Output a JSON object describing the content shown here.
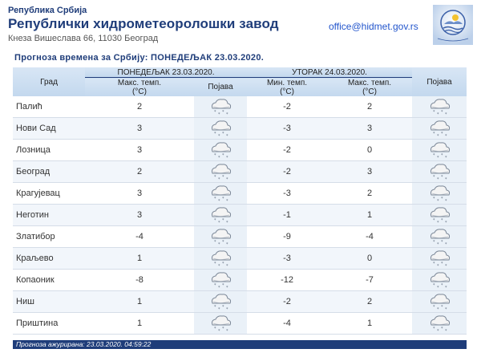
{
  "header": {
    "small_title": "Република Србија",
    "title": "Републички хидрометеоролошки завод",
    "address": "Кнеза Вишеслава 66, 11030 Београд",
    "email": "office@hidmet.gov.rs"
  },
  "subtitle": "Прогноза времена за Србију: ПОНЕДЕЉАК  23.03.2020.",
  "table": {
    "city_header": "Град",
    "day1_caption": "ПОНЕДЕЉАК  23.03.2020.",
    "day2_caption": "УТОРАК  24.03.2020.",
    "day1_max_header": "Макс. темп.\n(°C)",
    "day1_phen_header": "Појава",
    "day2_min_header": "Мин. темп.\n(°C)",
    "day2_max_header": "Макс. темп.\n(°C)",
    "day2_phen_header": "Појава",
    "weather_icon": "cloud-snow-icon",
    "rows": [
      {
        "city": "Палић",
        "d1_max": "2",
        "d2_min": "-2",
        "d2_max": "2"
      },
      {
        "city": "Нови Сад",
        "d1_max": "3",
        "d2_min": "-3",
        "d2_max": "3"
      },
      {
        "city": "Лозница",
        "d1_max": "3",
        "d2_min": "-2",
        "d2_max": "0"
      },
      {
        "city": "Београд",
        "d1_max": "2",
        "d2_min": "-2",
        "d2_max": "3"
      },
      {
        "city": "Крагујевац",
        "d1_max": "3",
        "d2_min": "-3",
        "d2_max": "2"
      },
      {
        "city": "Неготин",
        "d1_max": "3",
        "d2_min": "-1",
        "d2_max": "1"
      },
      {
        "city": "Златибор",
        "d1_max": "-4",
        "d2_min": "-9",
        "d2_max": "-4"
      },
      {
        "city": "Краљево",
        "d1_max": "1",
        "d2_min": "-3",
        "d2_max": "0"
      },
      {
        "city": "Копаоник",
        "d1_max": "-8",
        "d2_min": "-12",
        "d2_max": "-7"
      },
      {
        "city": "Ниш",
        "d1_max": "1",
        "d2_min": "-2",
        "d2_max": "2"
      },
      {
        "city": "Приштина",
        "d1_max": "1",
        "d2_min": "-4",
        "d2_max": "1"
      }
    ]
  },
  "footer": "Прогноза ажурирана:  23.03.2020. 04:59:22",
  "colors": {
    "brand": "#1f3d7a",
    "header_bg": "#c3d8ee",
    "link": "#2255cc"
  }
}
